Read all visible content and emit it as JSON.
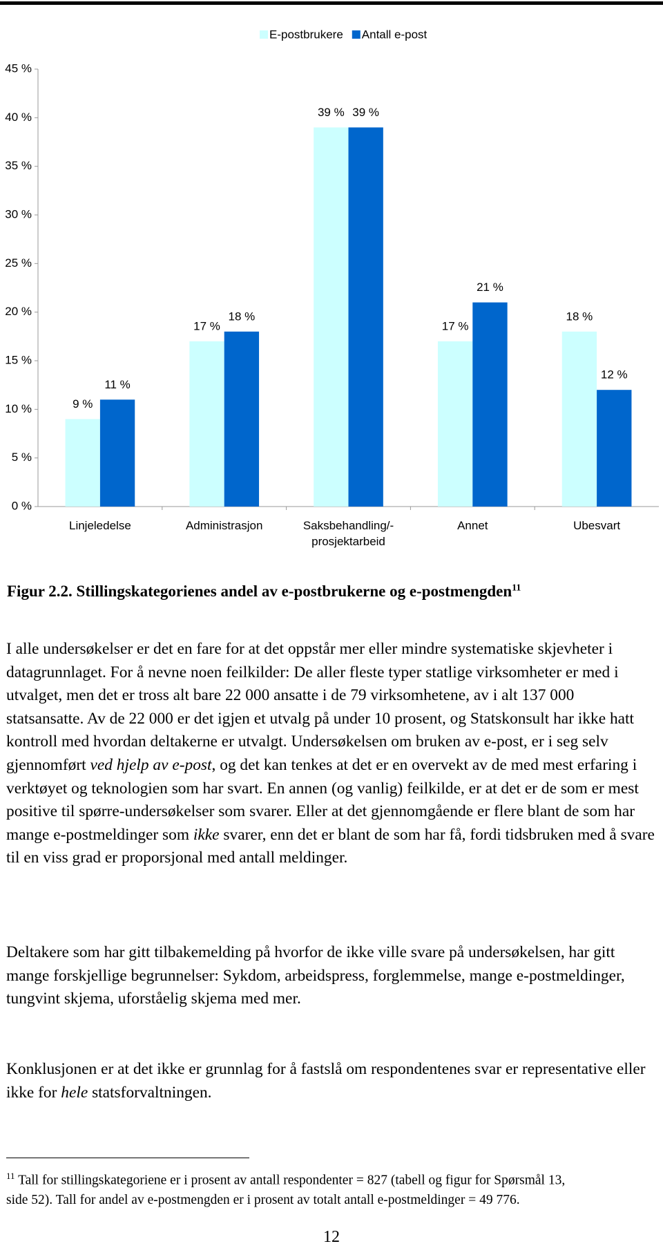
{
  "chart_data": {
    "type": "bar",
    "categories": [
      "Linjeledelse",
      "Administrasjon",
      "Saksbehandling/-\nprosjektarbeid",
      "Annet",
      "Ubesvart"
    ],
    "series": [
      {
        "name": "E-postbrukere",
        "color": "#ccffff",
        "values": [
          9,
          17,
          39,
          17,
          18
        ],
        "value_labels": [
          "9 %",
          "17 %",
          "39 %",
          "17 %",
          "18 %"
        ]
      },
      {
        "name": "Antall e-post",
        "color": "#0066cc",
        "values": [
          11,
          18,
          39,
          21,
          12
        ],
        "value_labels": [
          "11 %",
          "18 %",
          "39 %",
          "21 %",
          "12 %"
        ]
      }
    ],
    "ylim": [
      0,
      45
    ],
    "yticks": [
      {
        "value": 0,
        "label": "0 %"
      },
      {
        "value": 5,
        "label": "5 %"
      },
      {
        "value": 10,
        "label": "10 %"
      },
      {
        "value": 15,
        "label": "15 %"
      },
      {
        "value": 20,
        "label": "20 %"
      },
      {
        "value": 25,
        "label": "25 %"
      },
      {
        "value": 30,
        "label": "30 %"
      },
      {
        "value": 35,
        "label": "35 %"
      },
      {
        "value": 40,
        "label": "40 %"
      },
      {
        "value": 45,
        "label": "45 %"
      }
    ],
    "legend": "top"
  },
  "caption": {
    "text": "Figur 2.2. Stillingskategorienes andel av e-postbrukerne og e-postmengden",
    "note_ref": "11"
  },
  "body": {
    "paragraphs": [
      [
        "I alle undersøkelser er det en fare for at det oppstår mer eller mindre systematiske skjevheter i datagrunnlaget. For å nevne noen feilkilder: De aller fleste typer statlige virksomheter er med i utvalget, men det er tross alt bare 22 000 ansatte i de 79 virksomhetene, av i alt 137 000 statsansatte. Av de 22 000 er det igjen et utvalg på under 10 prosent, og Statskonsult har ikke hatt kontroll med hvordan deltakerne er utvalgt. Undersøkelsen om bruken av e-post, er i seg selv gjennomført ",
        {
          "italic": "ved hjelp av e-post"
        },
        ", og det kan tenkes at det er en overvekt av de med mest erfaring i verktøyet og teknologien som har svart. En annen (og vanlig) feilkilde, er at det er de som er mest positive til spørre-undersøkelser som svarer. Eller at det gjennomgående er flere blant de som har mange e-postmeldinger som ",
        {
          "italic": "ikke"
        },
        " svarer, enn det er blant de som har få, fordi tidsbruken med å svare til en viss grad er proporsjonal med antall meldinger."
      ],
      [
        "Deltakere som har gitt tilbakemelding på hvorfor de ikke ville svare på undersøkelsen, har gitt mange forskjellige begrunnelser: Sykdom, arbeidspress, forglemmelse, mange e-postmeldinger, tungvint skjema, uforståelig skjema med mer."
      ],
      [
        "Konklusjonen er at det ikke er grunnlag for å fastslå om respondentenes svar er representative eller ikke for ",
        {
          "italic": "hele"
        },
        " statsforvaltningen."
      ]
    ]
  },
  "footnote": {
    "number": "11",
    "text": "Tall for stillingskategoriene er i prosent av antall respondenter = 827 (tabell og figur for Spørsmål 13, side 52). Tall for andel av e-postmengden er i prosent av totalt antall e-postmeldinger = 49 776."
  },
  "page_number": "12"
}
